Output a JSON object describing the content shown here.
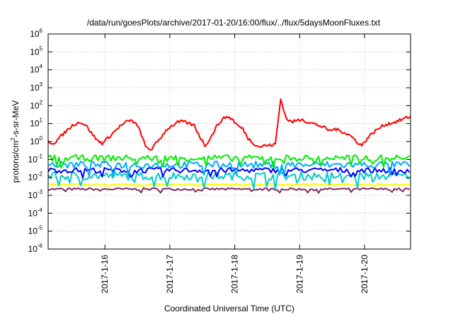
{
  "chart_data": {
    "type": "line",
    "title": "/data/run/goesPlots/archive/2017-01-20/16:00/flux/../flux/5daysMoonFluxes.txt",
    "xlabel": "Coordinated Universal Time (UTC)",
    "ylabel_parts": [
      "protons/cm",
      "2",
      "-s-sr-MeV"
    ],
    "yscale": "log",
    "ylim": [
      1e-06,
      1000000.0
    ],
    "xlim_hours": [
      0,
      134
    ],
    "grid": true,
    "x_ticks": [
      {
        "label": "2017-1-16",
        "hour": 21
      },
      {
        "label": "2017-1-17",
        "hour": 45
      },
      {
        "label": "2017-1-18",
        "hour": 69
      },
      {
        "label": "2017-1-19",
        "hour": 93
      },
      {
        "label": "2017-1-20",
        "hour": 117
      }
    ],
    "y_ticks": [
      {
        "base": "10",
        "exp": "6",
        "value": 1000000.0
      },
      {
        "base": "10",
        "exp": "5",
        "value": 100000.0
      },
      {
        "base": "10",
        "exp": "4",
        "value": 10000.0
      },
      {
        "base": "10",
        "exp": "3",
        "value": 1000.0
      },
      {
        "base": "10",
        "exp": "2",
        "value": 100.0
      },
      {
        "base": "10",
        "exp": "1",
        "value": 10.0
      },
      {
        "base": "10",
        "exp": "0",
        "value": 1.0
      },
      {
        "base": "10",
        "exp": "-1",
        "value": 0.1
      },
      {
        "base": "10",
        "exp": "-2",
        "value": 0.01
      },
      {
        "base": "10",
        "exp": "-3",
        "value": 0.001
      },
      {
        "base": "10",
        "exp": "-4",
        "value": 0.0001
      },
      {
        "base": "10",
        "exp": "-5",
        "value": 1e-05
      },
      {
        "base": "10",
        "exp": "-6",
        "value": 1e-06
      }
    ],
    "series": [
      {
        "color": "#ff0000",
        "hours": [
          0,
          2,
          4,
          6,
          8,
          10,
          12,
          14,
          16,
          18,
          20,
          22,
          24,
          26,
          28,
          30,
          32,
          34,
          36,
          38,
          40,
          42,
          44,
          46,
          48,
          50,
          52,
          54,
          56,
          58,
          60,
          62,
          64,
          66,
          68,
          70,
          72,
          74,
          76,
          78,
          80,
          82,
          84,
          86,
          88,
          90,
          92,
          94,
          94.3,
          96,
          98,
          100,
          102,
          104,
          106,
          108,
          110,
          112,
          114,
          116,
          118,
          120,
          122,
          124,
          126,
          128,
          130,
          132,
          134
        ],
        "values": [
          1.0,
          0.8,
          1.5,
          3,
          6,
          10,
          12,
          8,
          3,
          1.2,
          0.8,
          1.5,
          3,
          6,
          10,
          15,
          12,
          4,
          0.5,
          0.35,
          0.8,
          2,
          5,
          8,
          12,
          13,
          10,
          8,
          2,
          0.6,
          1.5,
          6,
          15,
          25,
          18,
          8,
          5,
          1.5,
          0.8,
          0.5,
          0.6,
          0.6,
          0.7,
          240,
          20,
          12,
          15,
          18,
          16,
          12,
          10,
          8,
          6,
          4,
          5,
          4,
          3,
          2,
          1,
          0.6,
          1.5,
          3,
          5,
          8,
          10,
          12,
          15,
          20,
          25
        ]
      },
      {
        "color": "#00ee00",
        "base": 0.12,
        "amp": 0.7,
        "hours": [
          0,
          134
        ]
      },
      {
        "color": "#00aaff",
        "base": 0.05,
        "amp": 0.8,
        "hours": [
          0,
          134
        ]
      },
      {
        "color": "#0000ff",
        "base": 0.025,
        "amp": 0.6,
        "hours": [
          0,
          134
        ]
      },
      {
        "color": "#00cccc",
        "base": 0.012,
        "amp": 0.9,
        "hours": [
          0,
          134
        ]
      },
      {
        "color": "#ffff00",
        "base": 0.004,
        "amp": 0.15,
        "hours": [
          0,
          134
        ]
      },
      {
        "color": "#7f2a5a",
        "base": 0.0022,
        "amp": 0.25,
        "hours": [
          0,
          134
        ]
      }
    ]
  }
}
